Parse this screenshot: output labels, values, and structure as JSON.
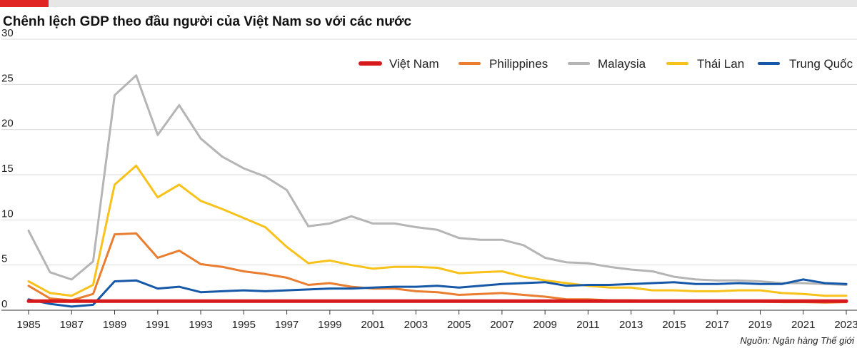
{
  "chart_data": {
    "type": "line",
    "title": "Chênh lệch GDP theo đầu người của Việt Nam so với các nước",
    "source": "Nguồn: Ngân hàng Thế giới",
    "xlabel": "",
    "ylabel": "",
    "ylim": [
      0,
      30
    ],
    "yticks": [
      0,
      5,
      10,
      15,
      20,
      25,
      30
    ],
    "xlim": [
      1985,
      2023
    ],
    "xticks": [
      1985,
      1987,
      1989,
      1991,
      1993,
      1995,
      1997,
      1999,
      2001,
      2003,
      2005,
      2007,
      2009,
      2011,
      2013,
      2015,
      2017,
      2019,
      2021,
      2023
    ],
    "grid": "horizontal",
    "legend_position": "top",
    "x": [
      1985,
      1986,
      1987,
      1988,
      1989,
      1990,
      1991,
      1992,
      1993,
      1994,
      1995,
      1996,
      1997,
      1998,
      1999,
      2000,
      2001,
      2002,
      2003,
      2004,
      2005,
      2006,
      2007,
      2008,
      2009,
      2010,
      2011,
      2012,
      2013,
      2014,
      2015,
      2016,
      2017,
      2018,
      2019,
      2020,
      2021,
      2022,
      2023
    ],
    "series": [
      {
        "name": "Việt Nam",
        "color": "#d7191c",
        "values": [
          1,
          1,
          1,
          1,
          1,
          1,
          1,
          1,
          1,
          1,
          1,
          1,
          1,
          1,
          1,
          1,
          1,
          1,
          1,
          1,
          1,
          1,
          1,
          1,
          1,
          1,
          1,
          1,
          1,
          1,
          1,
          1,
          1,
          1,
          1,
          1,
          1,
          1,
          1
        ]
      },
      {
        "name": "Philippines",
        "color": "#ea7d2f",
        "values": [
          2.7,
          1.3,
          1.1,
          1.8,
          8.4,
          8.5,
          5.8,
          6.6,
          5.1,
          4.8,
          4.3,
          4.0,
          3.6,
          2.8,
          3.0,
          2.6,
          2.4,
          2.4,
          2.1,
          2.0,
          1.7,
          1.8,
          1.9,
          1.7,
          1.5,
          1.2,
          1.2,
          1.1,
          1.1,
          1.0,
          1.0,
          1.0,
          1.0,
          0.95,
          0.95,
          0.9,
          0.9,
          0.85,
          0.9
        ]
      },
      {
        "name": "Malaysia",
        "color": "#b5b5b5",
        "values": [
          8.8,
          4.2,
          3.4,
          5.4,
          23.8,
          26.0,
          19.4,
          22.7,
          19.0,
          17.0,
          15.7,
          14.8,
          13.3,
          9.3,
          9.6,
          10.4,
          9.6,
          9.6,
          9.2,
          8.9,
          8.0,
          7.8,
          7.8,
          7.2,
          5.8,
          5.3,
          5.2,
          4.8,
          4.5,
          4.3,
          3.7,
          3.4,
          3.3,
          3.3,
          3.2,
          3.0,
          3.0,
          2.9,
          2.8
        ]
      },
      {
        "name": "Thái Lan",
        "color": "#f8c21b",
        "values": [
          3.2,
          1.9,
          1.6,
          2.8,
          13.9,
          16.0,
          12.5,
          13.9,
          12.1,
          11.2,
          10.2,
          9.2,
          7.0,
          5.2,
          5.5,
          5.0,
          4.6,
          4.8,
          4.8,
          4.7,
          4.1,
          4.2,
          4.3,
          3.7,
          3.3,
          3.0,
          2.7,
          2.5,
          2.5,
          2.2,
          2.2,
          2.1,
          2.1,
          2.2,
          2.2,
          1.9,
          1.8,
          1.6,
          1.6
        ]
      },
      {
        "name": "Trung Quốc",
        "color": "#1558a8",
        "values": [
          1.2,
          0.7,
          0.4,
          0.6,
          3.2,
          3.3,
          2.4,
          2.6,
          2.0,
          2.1,
          2.2,
          2.1,
          2.2,
          2.3,
          2.4,
          2.4,
          2.5,
          2.6,
          2.6,
          2.7,
          2.5,
          2.7,
          2.9,
          3.0,
          3.1,
          2.7,
          2.8,
          2.8,
          2.9,
          3.0,
          3.1,
          2.9,
          2.9,
          3.0,
          2.9,
          2.9,
          3.4,
          3.0,
          2.9
        ]
      }
    ]
  }
}
